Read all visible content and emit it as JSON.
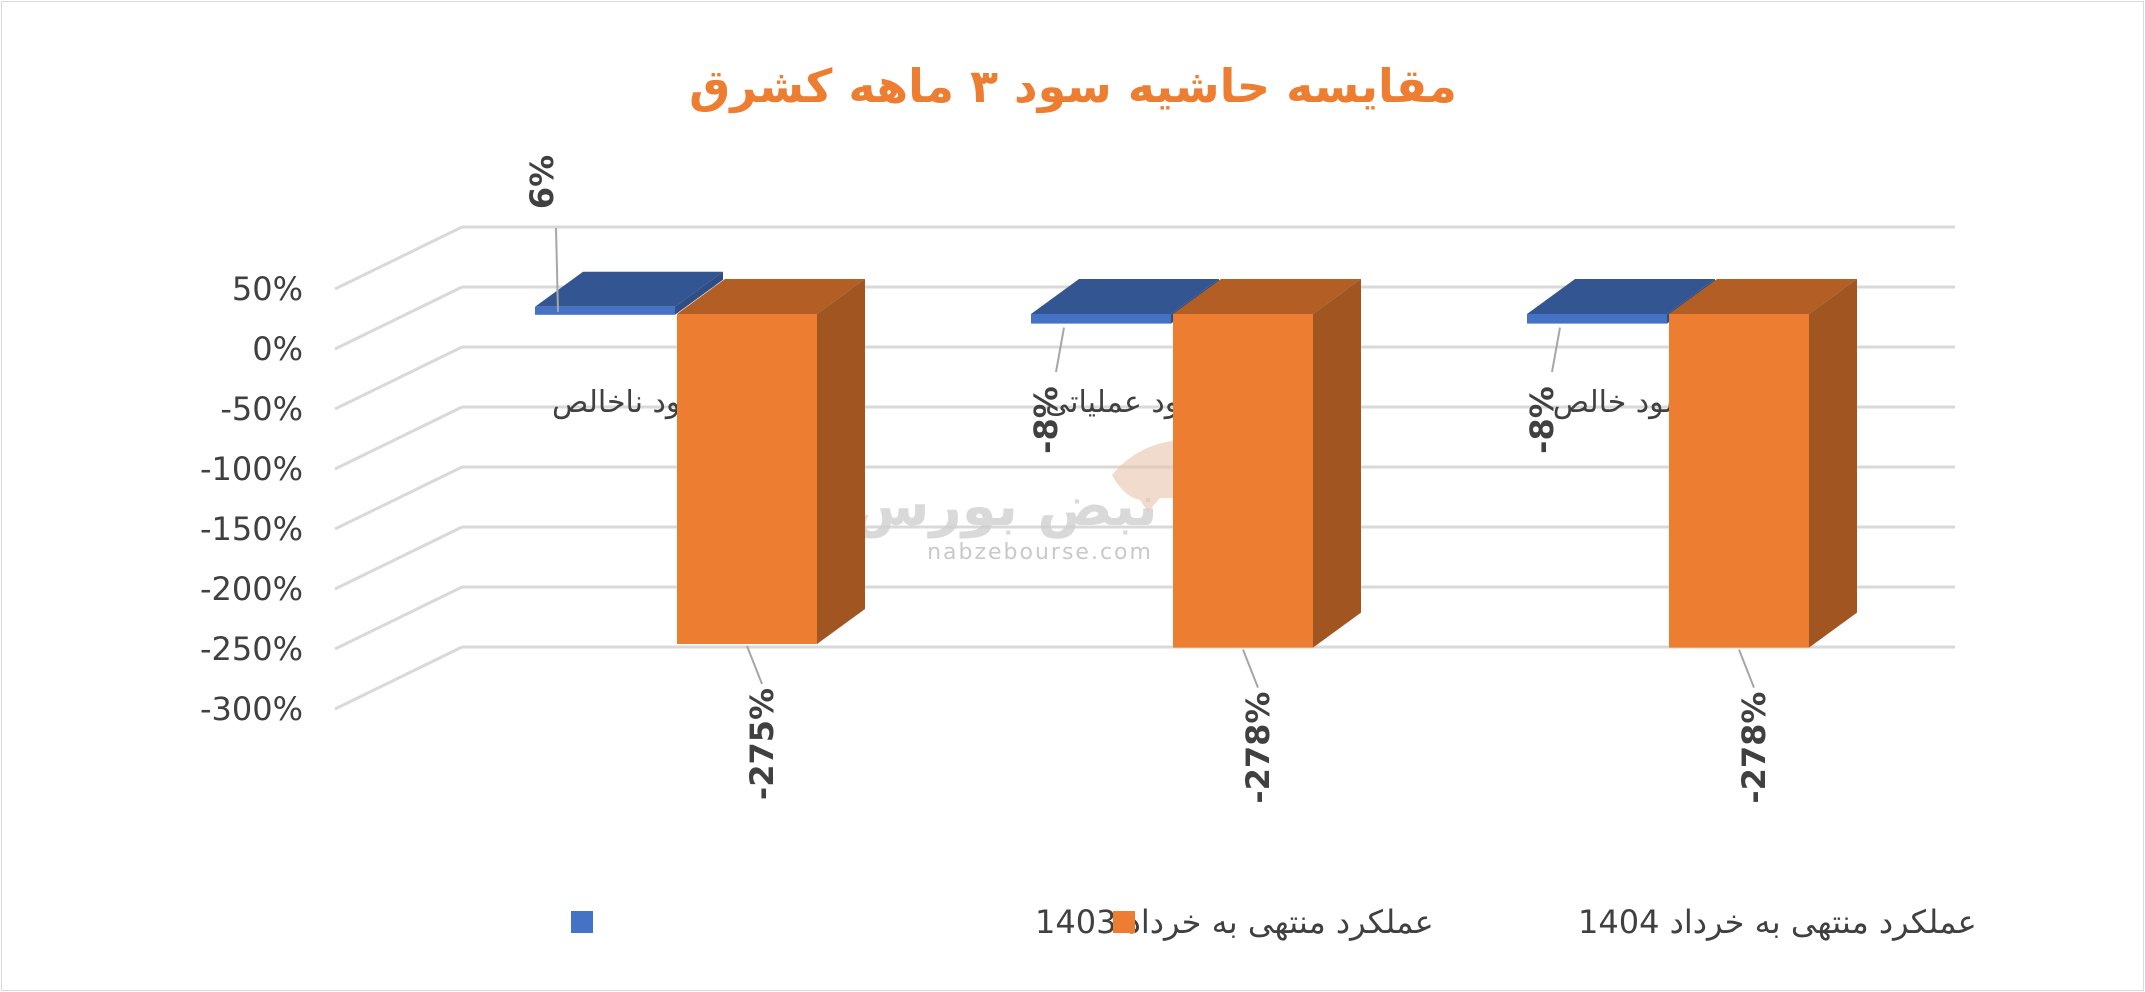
{
  "chart_data": {
    "type": "bar",
    "title": "مقایسه حاشیه سود ۳ ماهه کشرق",
    "categories": [
      "حاشیه سود ناخالص",
      "حاشیه سود عملیاتی",
      "حاشیه سود خالص"
    ],
    "series": [
      {
        "name": "عملکرد منتهی به خرداد 1403",
        "values": [
          6,
          -8,
          -8
        ],
        "labels": [
          "6%",
          "-8%",
          "-8%"
        ],
        "color": "#4472c4"
      },
      {
        "name": "عملکرد منتهی به خرداد 1404",
        "values": [
          -275,
          -278,
          -278
        ],
        "labels": [
          "-275%",
          "-278%",
          "-278%"
        ],
        "color": "#ed7d31"
      }
    ],
    "y_ticks": [
      "50%",
      "0%",
      "-50%",
      "-100%",
      "-150%",
      "-200%",
      "-250%",
      "-300%"
    ],
    "ylim": [
      -300,
      50
    ],
    "grid": true,
    "legend_position": "bottom"
  },
  "watermark": {
    "logo_text": "نبض بورس",
    "url_text": "nabzebourse.com"
  }
}
